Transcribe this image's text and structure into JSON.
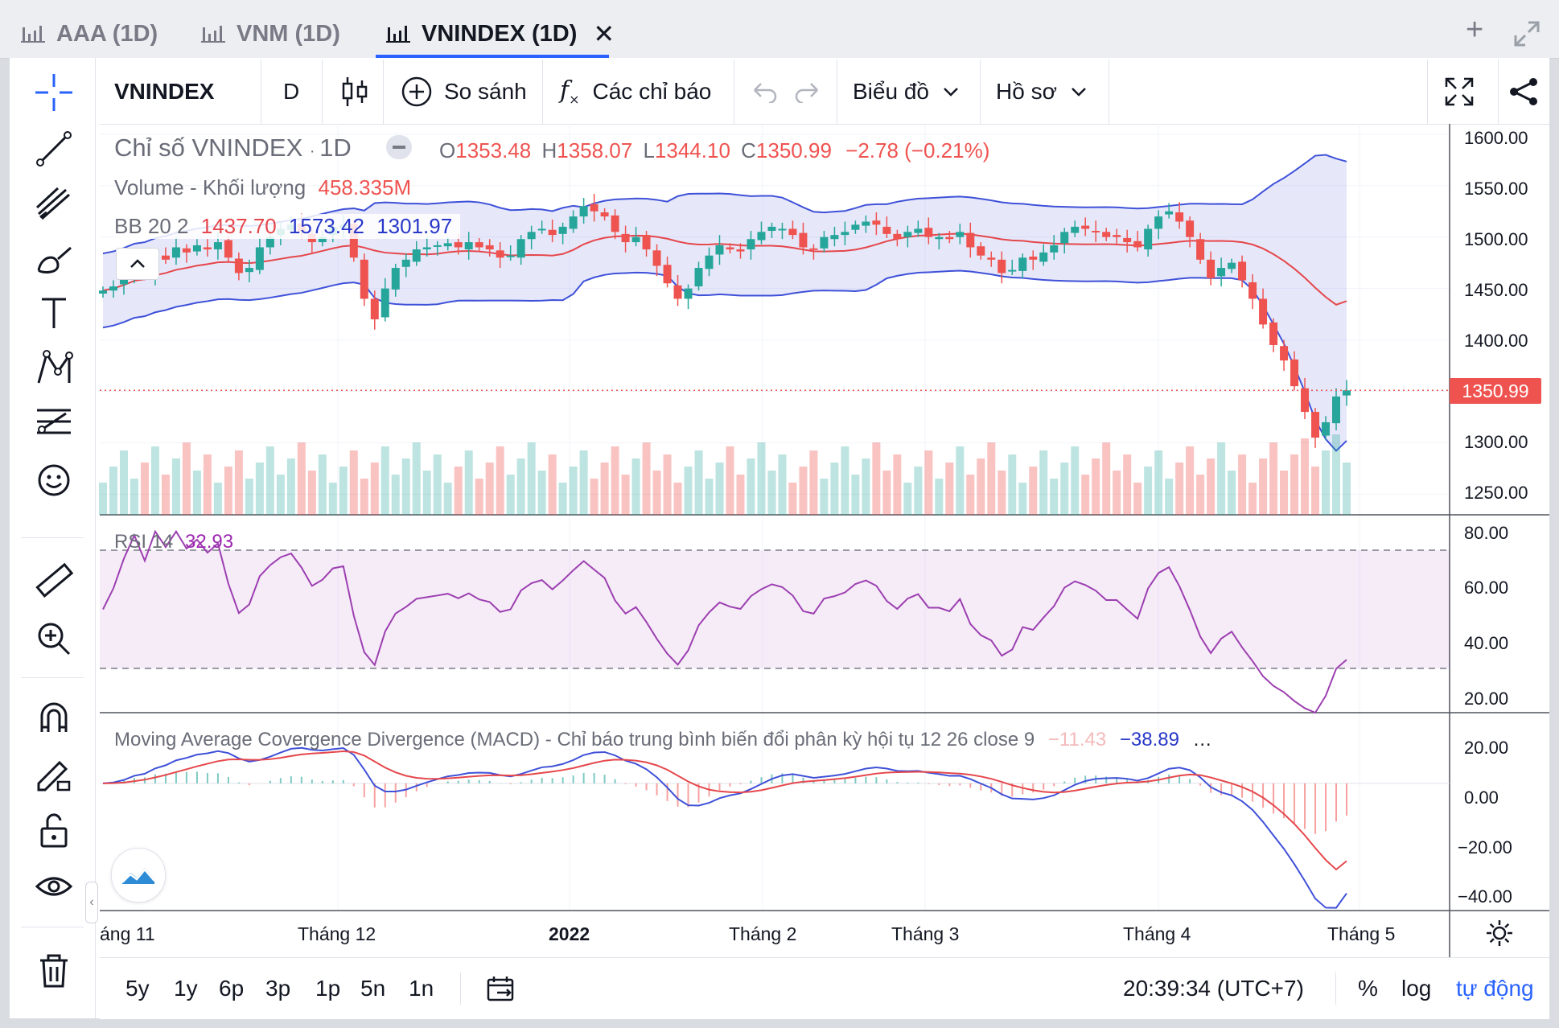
{
  "tabs": [
    {
      "label": "AAA (1D)"
    },
    {
      "label": "VNM (1D)"
    },
    {
      "label": "VNINDEX (1D)"
    }
  ],
  "toolbar": {
    "symbol": "VNINDEX",
    "interval": "D",
    "compare_label": "So sánh",
    "indicators_label": "Các chỉ báo",
    "chart_label": "Biểu đồ",
    "profile_label": "Hồ sơ"
  },
  "legend": {
    "title": "Chỉ số VNINDEX",
    "interval": "1D",
    "o_label": "O",
    "o_val": "1353.48",
    "h_label": "H",
    "h_val": "1358.07",
    "l_label": "L",
    "l_val": "1344.10",
    "c_label": "C",
    "c_val": "1350.99",
    "change": "−2.78 (−0.21%)",
    "volume_label": "Volume - Khối lượng",
    "volume_val": "458.335M",
    "bb_label": "BB 20 2",
    "bb_mid": "1437.70",
    "bb_up": "1573.42",
    "bb_low": "1301.97",
    "rsi_label": "RSI 14",
    "rsi_val": "32.93",
    "macd_label": "Moving Average Covergence Divergence (MACD) - Chỉ báo trung bình biến đổi phân kỳ hội tụ 12 26 close 9",
    "macd_hist": "−11.43",
    "macd_val": "−38.89",
    "macd_more": "…"
  },
  "price_axis": {
    "labels": [
      "1600.00",
      "1550.00",
      "1500.00",
      "1450.00",
      "1400.00",
      "1350.99",
      "1300.00",
      "1250.00"
    ],
    "rsi_labels": [
      "80.00",
      "60.00",
      "40.00",
      "20.00"
    ],
    "macd_labels": [
      "20.00",
      "0.00",
      "−20.00",
      "−40.00"
    ]
  },
  "time_axis": [
    "áng 11",
    "Tháng 12",
    "2022",
    "Tháng 2",
    "Tháng 3",
    "Tháng 4",
    "Tháng 5"
  ],
  "bottom": {
    "ranges": [
      "5y",
      "1y",
      "6p",
      "3p",
      "1p",
      "5n",
      "1n"
    ],
    "clock": "20:39:34 (UTC+7)",
    "percent": "%",
    "log": "log",
    "auto": "tự động"
  },
  "colors": {
    "up": "#26a69a",
    "down": "#ef5350",
    "bb_upper": "#3f51d8",
    "bb_mid": "#e5474b",
    "rsi": "#9c3fb0",
    "accent": "#2962ff"
  },
  "chart_data": {
    "type": "candlestick",
    "close_series": [
      1448,
      1452,
      1460,
      1470,
      1465,
      1482,
      1478,
      1490,
      1485,
      1492,
      1488,
      1495,
      1480,
      1465,
      1470,
      1490,
      1500,
      1508,
      1512,
      1505,
      1495,
      1500,
      1510,
      1512,
      1480,
      1440,
      1420,
      1450,
      1470,
      1478,
      1488,
      1490,
      1492,
      1494,
      1490,
      1495,
      1490,
      1488,
      1480,
      1482,
      1498,
      1505,
      1508,
      1502,
      1510,
      1520,
      1530,
      1525,
      1520,
      1505,
      1495,
      1500,
      1488,
      1472,
      1455,
      1440,
      1450,
      1470,
      1482,
      1492,
      1488,
      1486,
      1498,
      1505,
      1510,
      1508,
      1502,
      1490,
      1488,
      1500,
      1502,
      1505,
      1512,
      1515,
      1512,
      1503,
      1498,
      1505,
      1508,
      1500,
      1500,
      1498,
      1505,
      1490,
      1482,
      1478,
      1465,
      1468,
      1480,
      1478,
      1485,
      1492,
      1505,
      1510,
      1508,
      1505,
      1500,
      1500,
      1495,
      1490,
      1508,
      1520,
      1525,
      1515,
      1500,
      1478,
      1460,
      1470,
      1475,
      1458,
      1440,
      1415,
      1395,
      1380,
      1355,
      1330,
      1305,
      1320,
      1345,
      1351
    ],
    "bb_upper_end": 1573.42,
    "bb_mid_end": 1437.7,
    "bb_lower_end": 1301.97,
    "last_close": 1350.99,
    "rsi_last": 32.93,
    "macd_last": -38.89,
    "signal_last": -27.46,
    "hist_last": -11.43,
    "price_range": [
      1230,
      1610
    ],
    "rsi_range": [
      15,
      82
    ],
    "macd_range": [
      -45,
      25
    ]
  }
}
